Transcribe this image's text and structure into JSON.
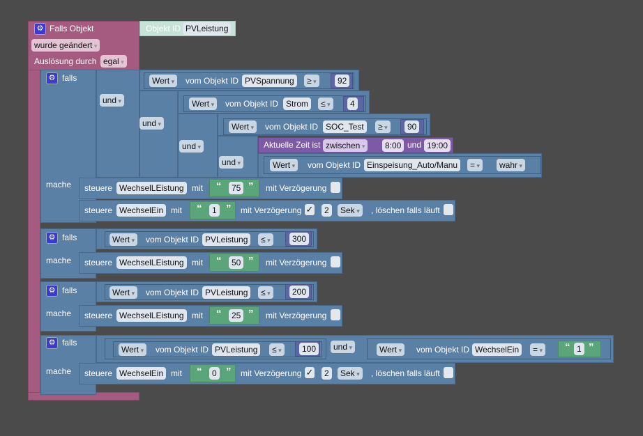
{
  "event": {
    "title": "Falls Objekt",
    "objekt_label": "Objekt ID",
    "objekt_id": "PVLeistung",
    "trigger": "wurde geändert",
    "trigger_label": "Auslösung durch",
    "trigger_value": "egal"
  },
  "common": {
    "falls": "falls",
    "mache": "mache",
    "und": "und",
    "wert": "Wert",
    "vom": "vom Objekt ID",
    "steuere": "steuere",
    "mit": "mit",
    "delay": "mit Verzögerung",
    "sek": "Sek",
    "clear": ", löschen falls läuft",
    "checkmark": "✓",
    "zeit": "Aktuelle Zeit ist",
    "zwischen": "zwischen",
    "open_quote": "“",
    "close_quote": "”",
    "gear": "⚙"
  },
  "if1": {
    "c1": {
      "object": "PVSpannung",
      "op": "≥",
      "value": "92"
    },
    "c2": {
      "object": "Strom",
      "op": "≤",
      "value": "4"
    },
    "c3": {
      "object": "SOC_Test",
      "op": "≥",
      "value": "90"
    },
    "time": {
      "from": "8:00",
      "to": "19:00"
    },
    "c4": {
      "object": "Einspeisung_Auto/Manu",
      "op": "=",
      "value": "wahr"
    },
    "s1": {
      "target": "WechselLEistung",
      "value": "75",
      "delay": false
    },
    "s2": {
      "target": "WechselEin",
      "value": "1",
      "delay": true,
      "delay_value": "2",
      "clear": false
    }
  },
  "if2": {
    "c": {
      "object": "PVLeistung",
      "op": "≤",
      "value": "300"
    },
    "s": {
      "target": "WechselLEistung",
      "value": "50",
      "delay": false
    }
  },
  "if3": {
    "c": {
      "object": "PVLeistung",
      "op": "≤",
      "value": "200"
    },
    "s": {
      "target": "WechselLEistung",
      "value": "25",
      "delay": false
    }
  },
  "if4": {
    "c1": {
      "object": "PVLeistung",
      "op": "≤",
      "value": "100"
    },
    "c2": {
      "object": "WechselEin",
      "op": "=",
      "value": "1"
    },
    "s": {
      "target": "WechselEin",
      "value": "0",
      "delay": true,
      "delay_value": "2",
      "clear": false
    }
  },
  "colors": {
    "event": "#a55b80",
    "logic": "#5b80a5",
    "number": "#5b67a5",
    "string": "#5ba57a",
    "time": "#7d5aa6",
    "object": "#c6e3d8"
  }
}
